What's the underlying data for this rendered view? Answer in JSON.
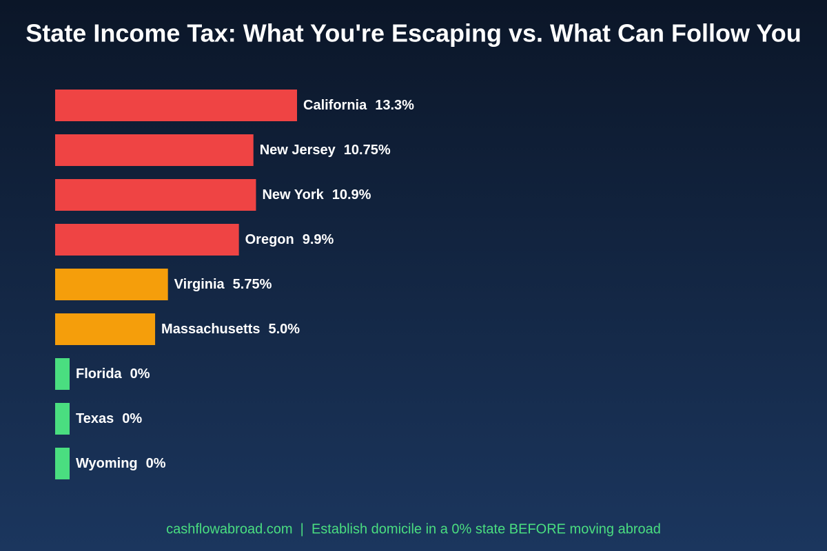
{
  "chart_data": {
    "type": "hbar",
    "title": "State Income Tax: What You're Escaping vs. What Can Follow You",
    "categories": [
      "California",
      "New Jersey",
      "New York",
      "Oregon",
      "Virginia",
      "Massachusetts",
      "Florida",
      "Texas",
      "Wyoming"
    ],
    "values": [
      13.3,
      10.75,
      10.9,
      9.9,
      5.75,
      5.0,
      0,
      0,
      0
    ],
    "value_labels": [
      "13.3%",
      "10.75%",
      "10.9%",
      "9.9%",
      "5.75%",
      "5.0%",
      "0%",
      "0%",
      "0%"
    ],
    "colors": [
      "#ef4444",
      "#ef4444",
      "#ef4444",
      "#ef4444",
      "#f59e0b",
      "#f59e0b",
      "#4ade80",
      "#4ade80",
      "#4ade80"
    ],
    "footer": "cashflowabroad.com  |  Establish domicile in a 0% state BEFORE moving abroad"
  }
}
